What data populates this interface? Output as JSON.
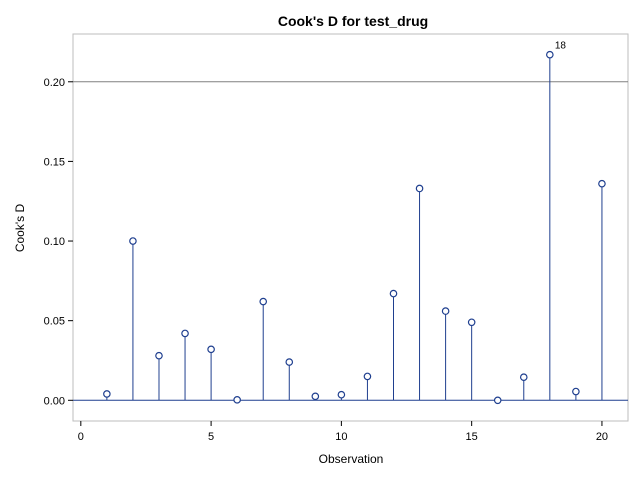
{
  "chart_data": {
    "type": "needle",
    "title": "Cook's D for test_drug",
    "xlabel": "Observation",
    "ylabel": "Cook's D",
    "xlim": [
      -0.3,
      21.0
    ],
    "ylim": [
      -0.013,
      0.23
    ],
    "x_ticks": [
      0,
      5,
      10,
      15,
      20
    ],
    "x_tick_labels": [
      "0",
      "5",
      "10",
      "15",
      "20"
    ],
    "y_ticks": [
      0.0,
      0.05,
      0.1,
      0.15,
      0.2
    ],
    "y_tick_labels": [
      "0.00",
      "0.05",
      "0.10",
      "0.15",
      "0.20"
    ],
    "reference_line": 0.2,
    "baseline": 0,
    "series": [
      {
        "x": [
          1,
          2,
          3,
          4,
          5,
          6,
          7,
          8,
          9,
          10,
          11,
          12,
          13,
          14,
          15,
          16,
          17,
          18,
          19,
          20
        ],
        "values": [
          0.004,
          0.1,
          0.028,
          0.042,
          0.032,
          0.0003,
          0.062,
          0.024,
          0.0025,
          0.0035,
          0.015,
          0.067,
          0.133,
          0.056,
          0.049,
          0.0,
          0.0145,
          0.217,
          0.0055,
          0.136
        ]
      }
    ],
    "point_labels": [
      {
        "x": 18,
        "text": "18"
      }
    ],
    "color": "#1f3f8f",
    "reference_line_color": "#808080",
    "grid": false
  }
}
